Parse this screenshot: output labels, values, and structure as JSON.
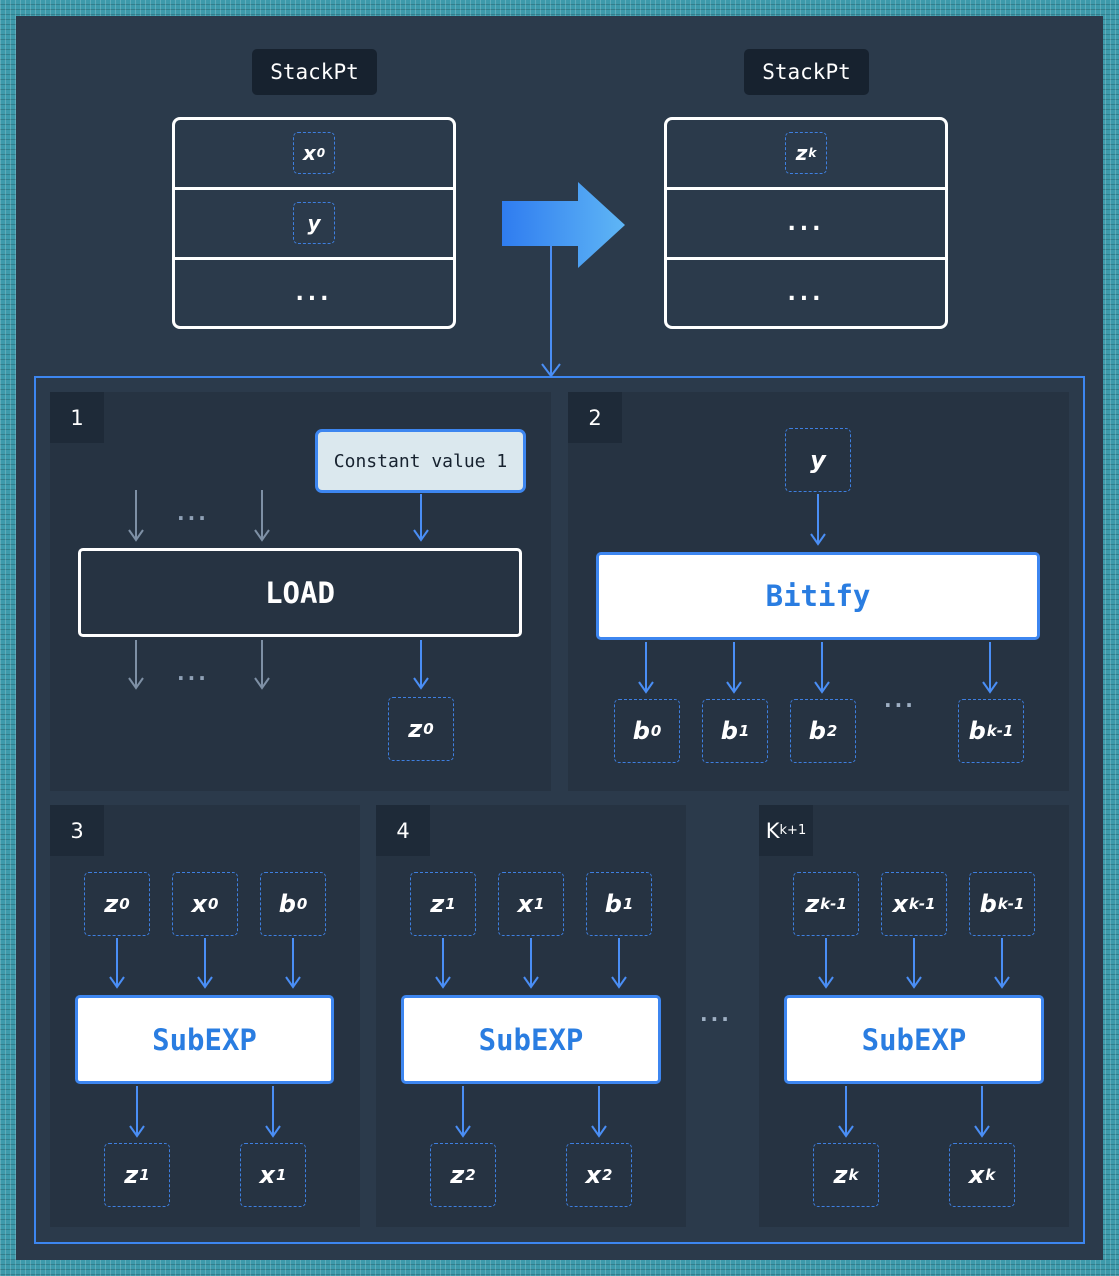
{
  "stacks": {
    "left": {
      "label": "StackPt",
      "rows": [
        {
          "base": "x",
          "sub": "0"
        },
        {
          "base": "y",
          "sub": ""
        },
        {
          "dots": "..."
        }
      ]
    },
    "right": {
      "label": "StackPt",
      "rows": [
        {
          "base": "z",
          "sub": "k"
        },
        {
          "dots": "..."
        },
        {
          "dots": "..."
        }
      ]
    }
  },
  "panels": {
    "p1": {
      "num": "1",
      "constant": "Constant value 1",
      "op": "LOAD",
      "dots_top": "...",
      "dots_bottom": "...",
      "output": {
        "base": "z",
        "sub": "0"
      }
    },
    "p2": {
      "num": "2",
      "input": {
        "base": "y",
        "sub": ""
      },
      "op": "Bitify",
      "dots": "...",
      "outputs": [
        {
          "base": "b",
          "sub": "0"
        },
        {
          "base": "b",
          "sub": "1"
        },
        {
          "base": "b",
          "sub": "2"
        },
        {
          "base": "b",
          "sub": "k-1"
        }
      ]
    },
    "p3": {
      "num": "3",
      "op": "SubEXP",
      "inputs": [
        {
          "base": "z",
          "sub": "0"
        },
        {
          "base": "x",
          "sub": "0"
        },
        {
          "base": "b",
          "sub": "0"
        }
      ],
      "outputs": [
        {
          "base": "z",
          "sub": "1"
        },
        {
          "base": "x",
          "sub": "1"
        }
      ]
    },
    "p4": {
      "num": "4",
      "op": "SubEXP",
      "inputs": [
        {
          "base": "z",
          "sub": "1"
        },
        {
          "base": "x",
          "sub": "1"
        },
        {
          "base": "b",
          "sub": "1"
        }
      ],
      "outputs": [
        {
          "base": "z",
          "sub": "2"
        },
        {
          "base": "x",
          "sub": "2"
        }
      ]
    },
    "pk": {
      "num": "K",
      "num_sub": "k+1",
      "op": "SubEXP",
      "inputs": [
        {
          "base": "z",
          "sub": "k-1"
        },
        {
          "base": "x",
          "sub": "k-1"
        },
        {
          "base": "b",
          "sub": "k-1"
        }
      ],
      "outputs": [
        {
          "base": "z",
          "sub": "k"
        },
        {
          "base": "x",
          "sub": "k"
        }
      ]
    },
    "between_dots": "..."
  },
  "colors": {
    "accent": "#3d86f0",
    "background": "#2b3a4b",
    "panel": "#263342",
    "frame": "#3d9aab"
  }
}
